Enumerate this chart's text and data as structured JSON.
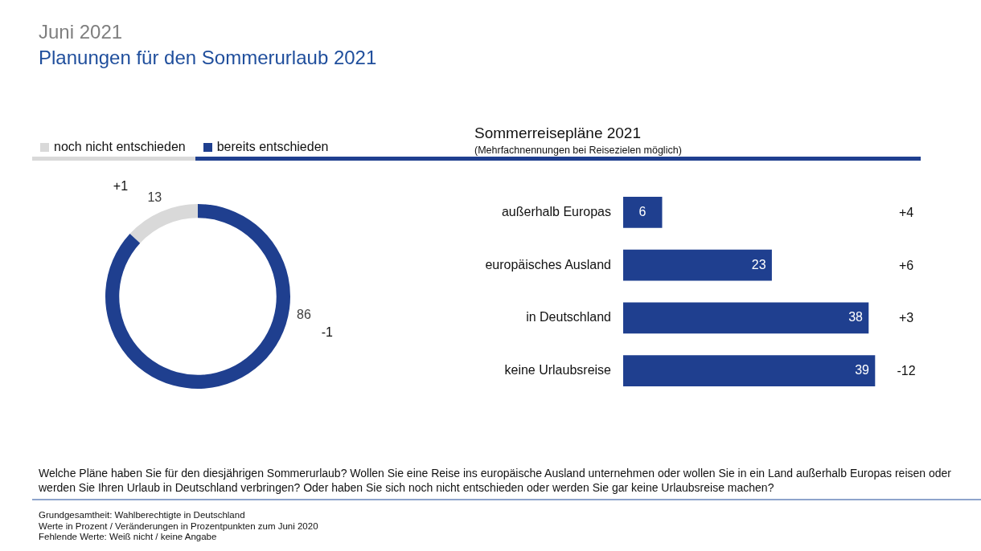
{
  "chart_data": [
    {
      "type": "donut",
      "title": "Juni 2021",
      "subtitle": "Planungen für den Sommerurlaub 2021",
      "categories": [
        "noch nicht entschieden",
        "bereits entschieden"
      ],
      "values": [
        13,
        86
      ],
      "colors": [
        "#d9d9d9",
        "#1f3f8f"
      ],
      "legend": "top",
      "data_labels": true,
      "annotations": [
        {
          "text": "+1",
          "x": "noch nicht entschieden"
        },
        {
          "text": "-1",
          "x": "bereits entschieden"
        },
        "Welche Pläne haben Sie für den diesjährigen Sommerurlaub? Wollen Sie eine Reise ins europäische Ausland unternehmen oder wollen Sie in ein Land außerhalb Europas reisen oder werden Sie Ihren Urlaub in Deutschland verbringen? Oder haben Sie sich noch nicht entschieden oder werden Sie gar keine Urlaubsreise machen?",
        "Grundgesamtheit: Wahlberechtigte in Deutschland",
        "Werte in Prozent / Veränderungen in Prozentpunkten zum Juni 2020",
        "Fehlende Werte: Weiß nicht / keine Angabe"
      ]
    },
    {
      "type": "bar",
      "orientation": "horizontal",
      "title": "Sommerreisepläne 2021",
      "subtitle": "(Mehrfachnennungen bei Reisezielen möglich)",
      "categories": [
        "außerhalb Europas",
        "europäisches Ausland",
        "in Deutschland",
        "keine Urlaubsreise"
      ],
      "values": [
        6,
        23,
        38,
        39
      ],
      "color": "#1f3f8f",
      "data_labels": true,
      "tick_labels": "y",
      "annotations": [
        "+4",
        "+6",
        "+3",
        "-12"
      ]
    }
  ]
}
